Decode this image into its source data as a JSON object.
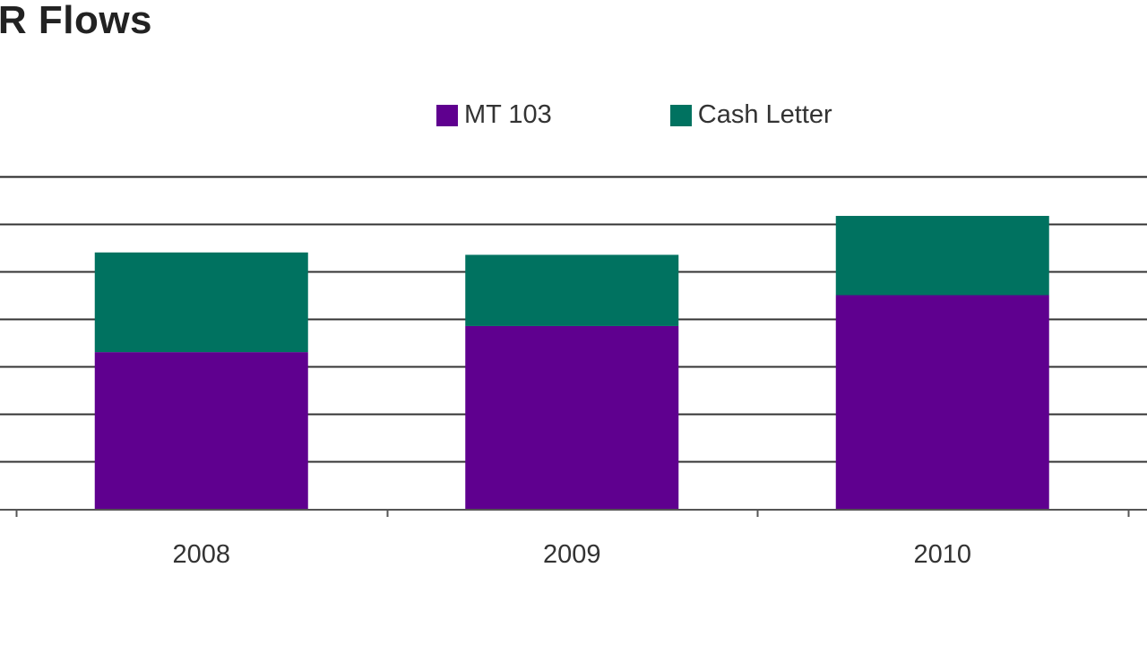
{
  "chart_data": {
    "type": "bar",
    "stacked": true,
    "title": "PR Flows",
    "categories": [
      "2008",
      "2009",
      "2010"
    ],
    "series": [
      {
        "name": "MT 103",
        "values": [
          3.3,
          3.85,
          4.5
        ]
      },
      {
        "name": "Cash Letter",
        "values": [
          2.1,
          1.5,
          1.67
        ]
      }
    ],
    "ylim": [
      0,
      7
    ],
    "grid": true,
    "legend": "top-center",
    "colors": {
      "MT 103": "#5f008f",
      "Cash Letter": "#007260"
    }
  }
}
